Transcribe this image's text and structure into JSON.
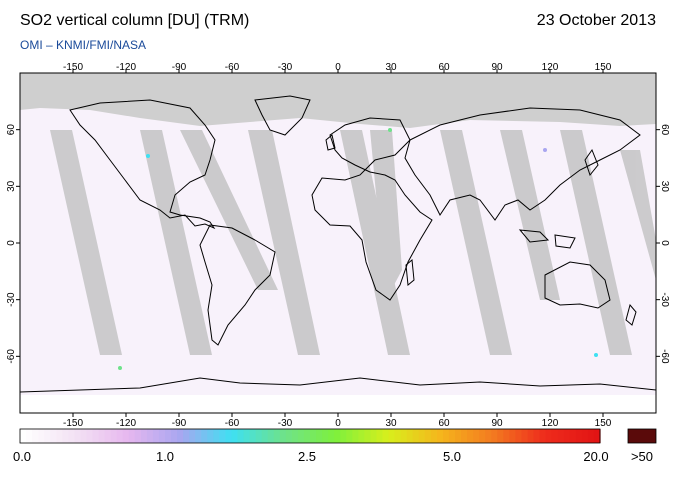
{
  "header": {
    "title": "SO2 vertical column [DU] (TRM)",
    "date": "23 October 2013",
    "credit": "OMI  –  KNMI/FMI/NASA"
  },
  "map": {
    "lon_ticks": [
      "-150",
      "-120",
      "-90",
      "-60",
      "-30",
      "0",
      "30",
      "60",
      "90",
      "120",
      "150"
    ],
    "lat_ticks": [
      "60",
      "30",
      "0",
      "-30",
      "-60"
    ],
    "lon_values": [
      -150,
      -120,
      -90,
      -60,
      -30,
      0,
      30,
      60,
      90,
      120,
      150
    ],
    "lat_values": [
      60,
      30,
      0,
      -30,
      -60
    ]
  },
  "colorbar": {
    "labels": [
      "0.0",
      "1.0",
      "2.5",
      "5.0",
      "20.0"
    ],
    "overflow_label": ">50",
    "colors": [
      "#ffffff",
      "#f3e2f4",
      "#e7b8ef",
      "#a9a6f0",
      "#3ee0f2",
      "#6ee28a",
      "#7ff03c",
      "#d8ef1c",
      "#f5b51c",
      "#f37a20",
      "#ee2c1c",
      "#e21414"
    ],
    "overflow_color": "#5a0a0a"
  }
}
